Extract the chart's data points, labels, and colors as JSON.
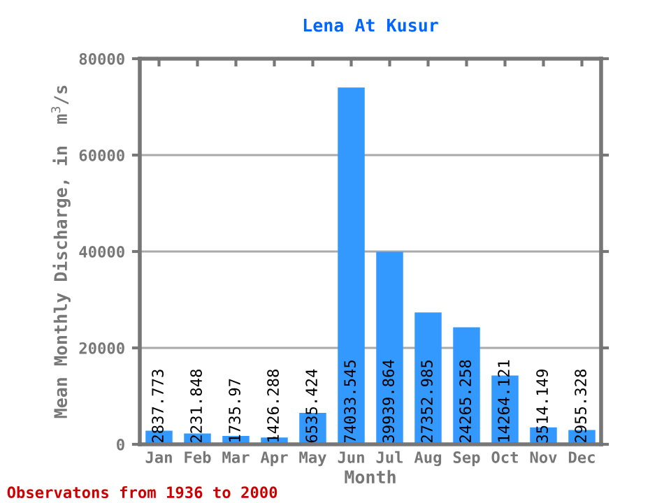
{
  "chart_data": {
    "type": "bar",
    "title": "Lena At Kusur",
    "xlabel": "Month",
    "ylabel": "Mean Monthly Discharge, in  m$^{3}$/s",
    "categories": [
      "Jan",
      "Feb",
      "Mar",
      "Apr",
      "May",
      "Jun",
      "Jul",
      "Aug",
      "Sep",
      "Oct",
      "Nov",
      "Dec"
    ],
    "values": [
      2837.773,
      2231.848,
      1735.97,
      1426.288,
      6535.424,
      74033.545,
      39939.864,
      27352.985,
      24265.258,
      14264.121,
      3514.149,
      2955.328
    ],
    "color": "#3399ff",
    "ylim": [
      0,
      80000
    ],
    "yticks": [
      0,
      20000,
      40000,
      60000,
      80000
    ],
    "grid": "y",
    "data_labels": true,
    "annotations": [
      "Observatons from 1936 to 2000"
    ]
  }
}
